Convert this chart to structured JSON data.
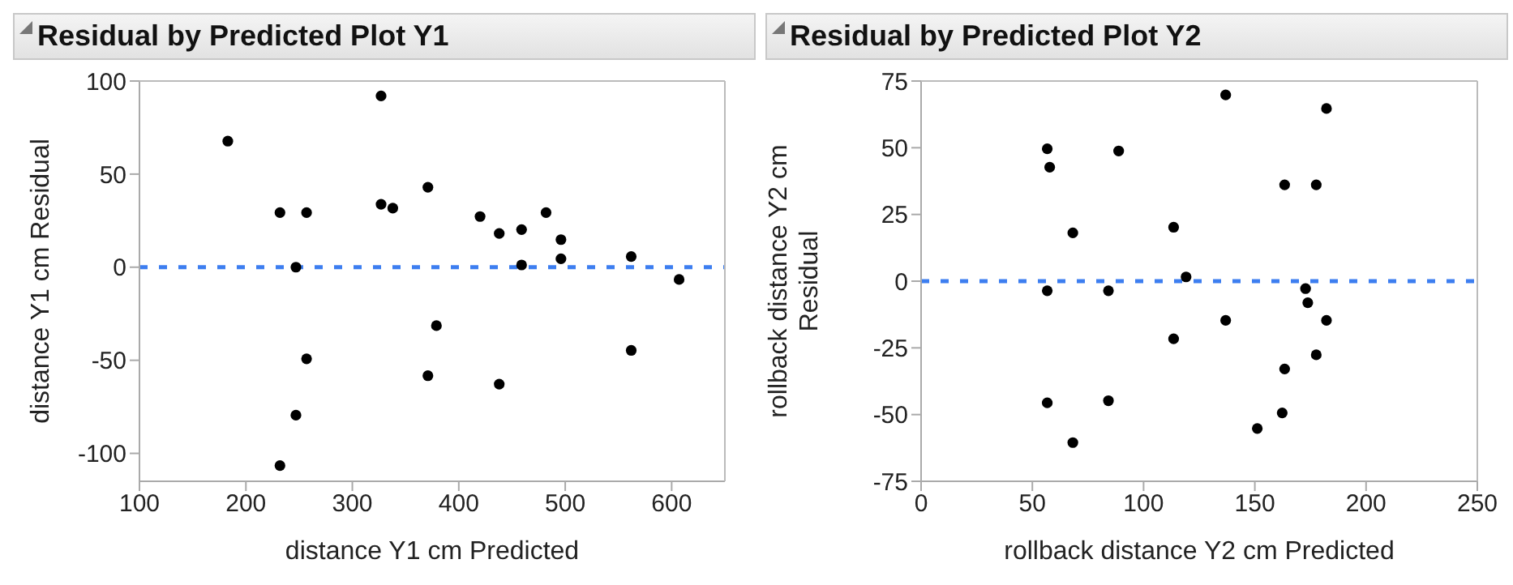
{
  "chart_data": [
    {
      "type": "scatter",
      "title": "Residual by Predicted Plot Y1",
      "xlabel": "distance Y1 cm Predicted",
      "ylabel": "distance Y1 cm Residual",
      "color": "#000000",
      "marker": "circle",
      "x": [
        183,
        232,
        257,
        247,
        257,
        247,
        232,
        327,
        327,
        338,
        371,
        379,
        371,
        420,
        438,
        438,
        459,
        459,
        482,
        496,
        496,
        562,
        562,
        607
      ],
      "values": [
        67.7,
        29.3,
        29.3,
        0,
        -49.2,
        -79.5,
        -106.6,
        92,
        33.8,
        31.7,
        42.9,
        -31.4,
        -58.3,
        27.2,
        18.1,
        -62.8,
        20.2,
        1.2,
        29.3,
        14.8,
        4.5,
        5.7,
        -44.7,
        -6.6
      ],
      "xlim": [
        100,
        650
      ],
      "xticks": [
        100,
        200,
        300,
        400,
        500,
        600
      ],
      "ylim": [
        -115,
        100
      ],
      "yticks": [
        -100,
        -50,
        0,
        50,
        100
      ],
      "ref_lines": [
        {
          "axis": "y",
          "value": 0,
          "color": "#3d7ef0",
          "line_style": "dashed"
        }
      ]
    },
    {
      "type": "scatter",
      "title": "Residual by Predicted Plot Y2",
      "xlabel": "rollback distance Y2 cm Predicted",
      "ylabel": "rollback distance Y2 cm Residual",
      "color": "#000000",
      "marker": "circle",
      "x": [
        56.7,
        57.8,
        56.7,
        56.7,
        68.2,
        68.2,
        84.2,
        84.2,
        88.8,
        113.5,
        113.5,
        119.1,
        136.9,
        136.9,
        151.1,
        163.4,
        163.4,
        162.3,
        172.8,
        173.8,
        177.6,
        177.6,
        182.2,
        182.2
      ],
      "values": [
        49.6,
        42.7,
        -3.6,
        -45.6,
        18.1,
        -60.5,
        -3.6,
        -44.8,
        48.8,
        20.2,
        -21.6,
        1.6,
        69.8,
        -14.7,
        -55.2,
        36.1,
        -32.9,
        -49.4,
        -2.8,
        -8.1,
        36.1,
        -27.6,
        64.7,
        -14.7
      ],
      "xlim": [
        0,
        250
      ],
      "xticks": [
        0,
        50,
        100,
        150,
        200,
        250
      ],
      "ylim": [
        -75,
        75
      ],
      "yticks": [
        -75,
        -50,
        -25,
        0,
        25,
        50,
        75
      ],
      "ref_lines": [
        {
          "axis": "y",
          "value": 0,
          "color": "#3d7ef0",
          "line_style": "dashed"
        }
      ]
    }
  ]
}
